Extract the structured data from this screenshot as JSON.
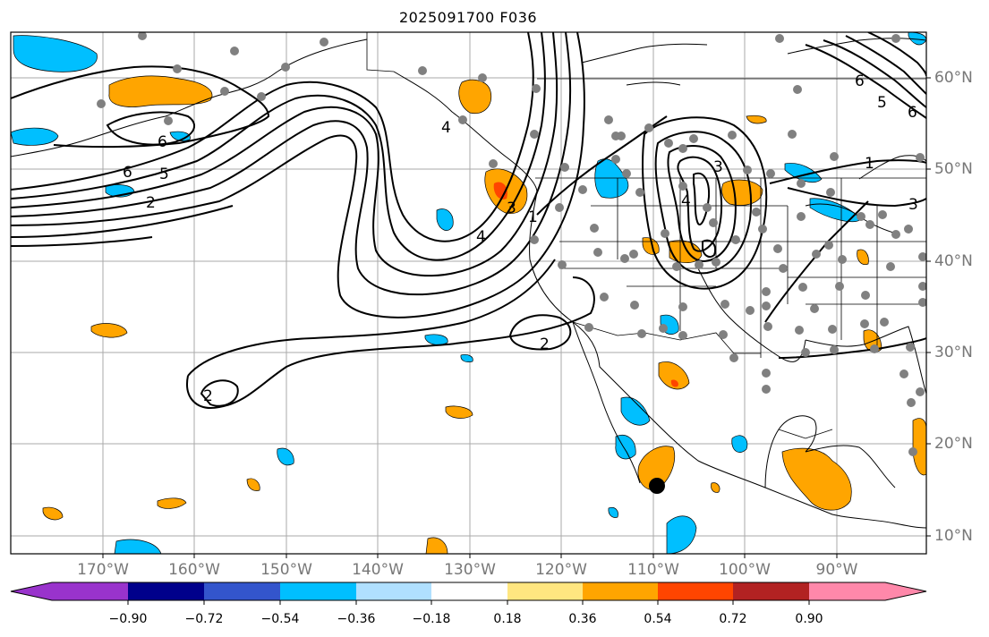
{
  "title": "2025091700 F036",
  "map": {
    "lon_labels": [
      "170°W",
      "160°W",
      "150°W",
      "140°W",
      "130°W",
      "120°W",
      "110°W",
      "100°W",
      "90°W"
    ],
    "lat_labels": [
      "60°N",
      "50°N",
      "40°N",
      "30°N",
      "20°N",
      "10°N"
    ],
    "contour_labels": [
      "6",
      "5",
      "2",
      "6",
      "4",
      "1",
      "2",
      "2",
      "6",
      "4",
      "3",
      "4",
      "1",
      "5",
      "6",
      "3",
      "3"
    ],
    "marker": "black-dot-station"
  },
  "colorbar": {
    "ticks": [
      "−0.90",
      "−0.72",
      "−0.54",
      "−0.36",
      "−0.18",
      "0.18",
      "0.36",
      "0.54",
      "0.72",
      "0.90"
    ],
    "colors": [
      "#9933cc",
      "#00008b",
      "#3355cc",
      "#00bfff",
      "#b0e0ff",
      "#ffffff",
      "#ffe680",
      "#ffa500",
      "#ff4500",
      "#b22222",
      "#ff88aa"
    ]
  }
}
